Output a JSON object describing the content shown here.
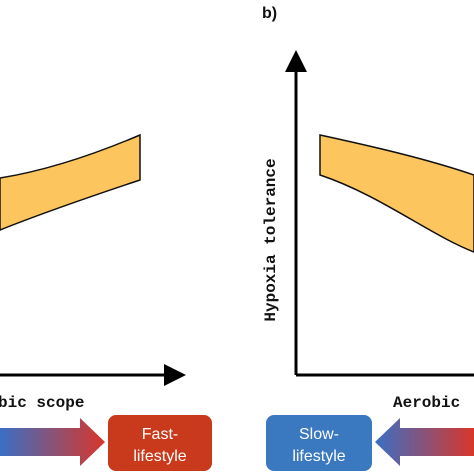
{
  "panel_label": "b)",
  "left_panel": {
    "x_axis_label": "bic scope",
    "box": {
      "lines": [
        "Fast-",
        "lifestyle"
      ]
    }
  },
  "right_panel": {
    "y_axis_label": "Hypoxia tolerance",
    "x_axis_label": "Aerobic",
    "box": {
      "lines": [
        "Slow-",
        "lifestyle"
      ]
    }
  }
}
